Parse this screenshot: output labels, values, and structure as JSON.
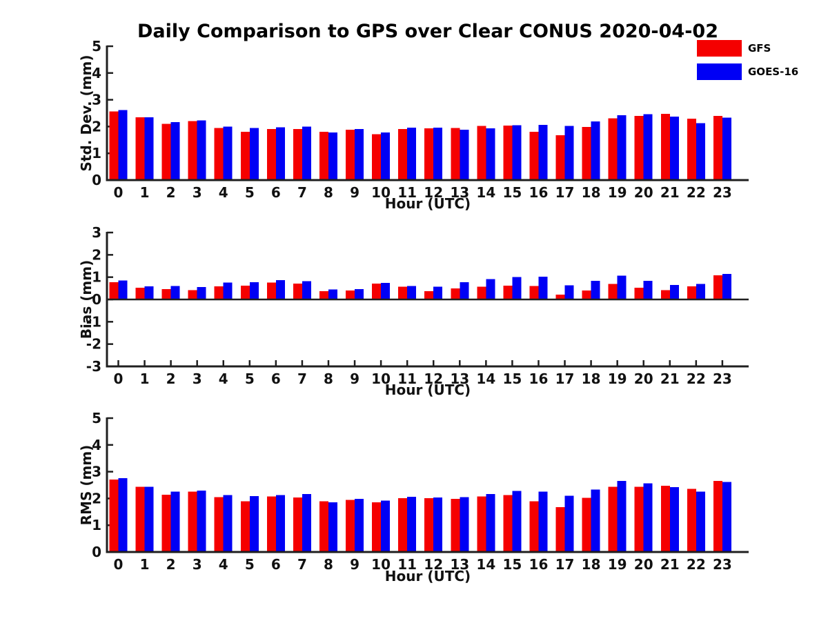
{
  "title": "Daily Comparison to GPS over Clear CONUS 2020-04-02",
  "colors": {
    "gfs_red": "#f50000",
    "goes16_blue": "#0000f5",
    "axis": "#1f1f1f",
    "text": "#111111",
    "background": "#ffffff"
  },
  "legend": {
    "position": "top-right",
    "entries": [
      {
        "label": "GFS",
        "color": "#f50000"
      },
      {
        "label": "GOES-16",
        "color": "#0000f5"
      }
    ]
  },
  "chart_data": [
    {
      "type": "bar",
      "ylabel": "Std. Dev. (mm)",
      "xlabel": "Hour (UTC)",
      "ylim": [
        0,
        5
      ],
      "yticks": [
        0,
        1,
        2,
        3,
        4,
        5
      ],
      "grid": false,
      "zero_line": false,
      "categories": [
        "0",
        "1",
        "2",
        "3",
        "4",
        "5",
        "6",
        "7",
        "8",
        "9",
        "10",
        "11",
        "12",
        "13",
        "14",
        "15",
        "16",
        "17",
        "18",
        "19",
        "20",
        "21",
        "22",
        "23"
      ],
      "series": [
        {
          "name": "GFS",
          "color": "#f50000",
          "values": [
            2.57,
            2.35,
            2.1,
            2.2,
            1.95,
            1.8,
            1.91,
            1.91,
            1.81,
            1.88,
            1.71,
            1.91,
            1.93,
            1.95,
            2.02,
            2.04,
            1.81,
            1.68,
            1.99,
            2.31,
            2.4,
            2.48,
            2.3,
            2.4
          ]
        },
        {
          "name": "GOES-16",
          "color": "#0000f5",
          "values": [
            2.61,
            2.35,
            2.17,
            2.23,
            2.0,
            1.94,
            1.97,
            2.0,
            1.78,
            1.91,
            1.78,
            1.96,
            1.96,
            1.88,
            1.93,
            2.05,
            2.06,
            2.02,
            2.19,
            2.42,
            2.46,
            2.37,
            2.13,
            2.33
          ]
        }
      ]
    },
    {
      "type": "bar",
      "ylabel": "Bias (mm)",
      "xlabel": "Hour (UTC)",
      "ylim": [
        -3,
        3
      ],
      "yticks": [
        -3,
        -2,
        -1,
        0,
        1,
        2,
        3
      ],
      "grid": false,
      "zero_line": true,
      "categories": [
        "0",
        "1",
        "2",
        "3",
        "4",
        "5",
        "6",
        "7",
        "8",
        "9",
        "10",
        "11",
        "12",
        "13",
        "14",
        "15",
        "16",
        "17",
        "18",
        "19",
        "20",
        "21",
        "22",
        "23"
      ],
      "series": [
        {
          "name": "GFS",
          "color": "#f50000",
          "values": [
            0.78,
            0.52,
            0.46,
            0.41,
            0.59,
            0.62,
            0.76,
            0.71,
            0.37,
            0.4,
            0.71,
            0.57,
            0.37,
            0.49,
            0.57,
            0.62,
            0.6,
            0.21,
            0.4,
            0.69,
            0.53,
            0.42,
            0.58,
            1.09
          ]
        },
        {
          "name": "GOES-16",
          "color": "#0000f5",
          "values": [
            0.85,
            0.58,
            0.61,
            0.55,
            0.76,
            0.77,
            0.86,
            0.82,
            0.45,
            0.46,
            0.74,
            0.61,
            0.57,
            0.78,
            0.91,
            1.01,
            1.02,
            0.64,
            0.83,
            1.07,
            0.84,
            0.65,
            0.69,
            1.15
          ]
        }
      ]
    },
    {
      "type": "bar",
      "ylabel": "RMS (mm)",
      "xlabel": "Hour (UTC)",
      "ylim": [
        0,
        5
      ],
      "yticks": [
        0,
        1,
        2,
        3,
        4,
        5
      ],
      "grid": false,
      "zero_line": false,
      "categories": [
        "0",
        "1",
        "2",
        "3",
        "4",
        "5",
        "6",
        "7",
        "8",
        "9",
        "10",
        "11",
        "12",
        "13",
        "14",
        "15",
        "16",
        "17",
        "18",
        "19",
        "20",
        "21",
        "22",
        "23"
      ],
      "series": [
        {
          "name": "GFS",
          "color": "#f50000",
          "values": [
            2.71,
            2.43,
            2.14,
            2.25,
            2.05,
            1.89,
            2.07,
            2.04,
            1.89,
            1.95,
            1.86,
            2.01,
            2.01,
            1.99,
            2.08,
            2.13,
            1.9,
            1.68,
            2.02,
            2.44,
            2.44,
            2.48,
            2.36,
            2.66
          ]
        },
        {
          "name": "GOES-16",
          "color": "#0000f5",
          "values": [
            2.76,
            2.43,
            2.26,
            2.29,
            2.12,
            2.09,
            2.13,
            2.16,
            1.85,
            1.98,
            1.92,
            2.06,
            2.04,
            2.05,
            2.16,
            2.28,
            2.26,
            2.1,
            2.33,
            2.65,
            2.56,
            2.42,
            2.25,
            2.61
          ]
        }
      ]
    }
  ]
}
